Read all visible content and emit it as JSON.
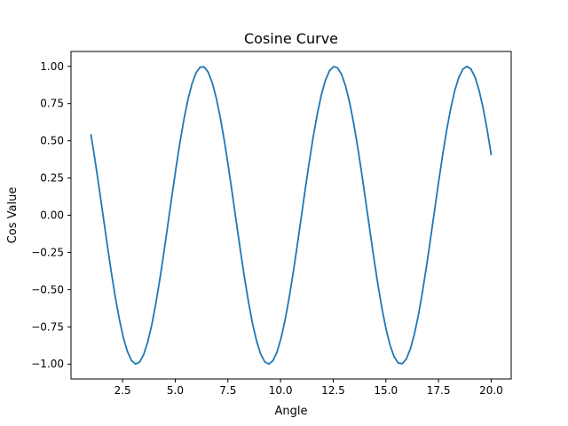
{
  "chart_data": {
    "type": "line",
    "title": "Cosine Curve",
    "xlabel": "Angle",
    "ylabel": "Cos Value",
    "xlim": [
      0.05,
      20.95
    ],
    "ylim": [
      -1.1,
      1.1
    ],
    "grid": false,
    "line_color": "#1f77b4",
    "x_ticks": [
      2.5,
      5.0,
      7.5,
      10.0,
      12.5,
      15.0,
      17.5,
      20.0
    ],
    "x_tick_labels": [
      "2.5",
      "5.0",
      "7.5",
      "10.0",
      "12.5",
      "15.0",
      "17.5",
      "20.0"
    ],
    "y_ticks": [
      -1.0,
      -0.75,
      -0.5,
      -0.25,
      0.0,
      0.25,
      0.5,
      0.75,
      1.0
    ],
    "y_tick_labels": [
      "−1.00",
      "−0.75",
      "−0.50",
      "−0.25",
      "0.00",
      "0.25",
      "0.50",
      "0.75",
      "1.00"
    ],
    "series": [
      {
        "function": "cos",
        "x_start": 1,
        "x_end": 20,
        "num_points": 100
      }
    ]
  }
}
